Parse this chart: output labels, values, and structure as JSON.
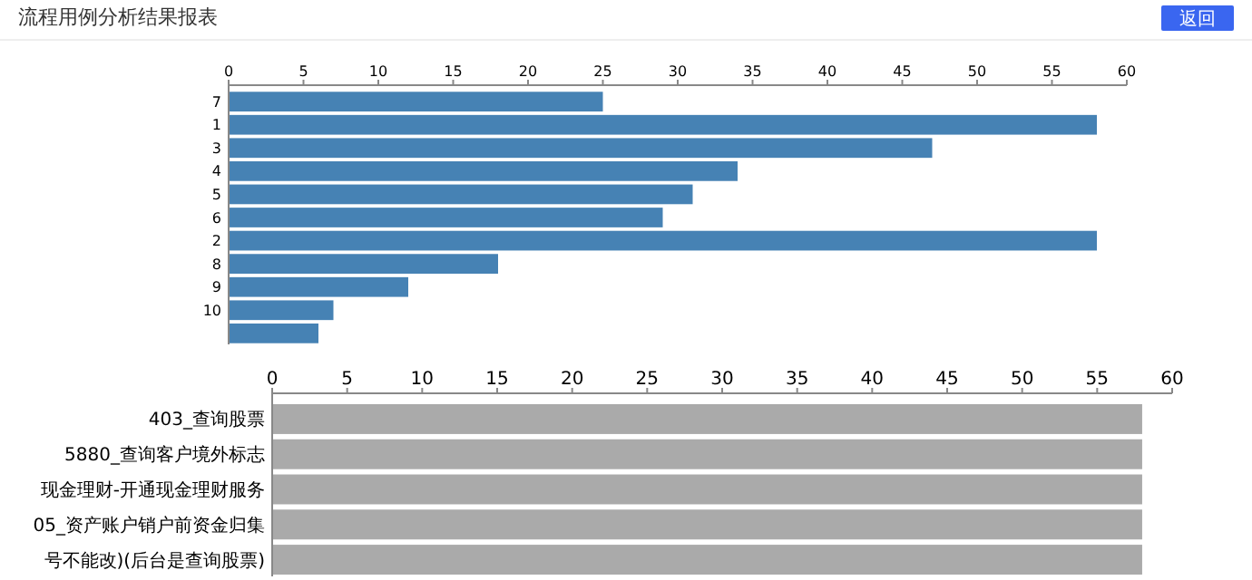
{
  "chart_data": [
    {
      "type": "bar",
      "orientation": "horizontal",
      "title": "流程用例分析结果报表",
      "annotations": [
        "返回"
      ],
      "categories": [
        "7",
        "1",
        "3",
        "4",
        "5",
        "6",
        "2",
        "8",
        "9",
        "10",
        null
      ],
      "values": [
        25,
        58,
        47,
        34,
        31,
        29,
        58,
        18,
        12,
        7,
        6
      ],
      "color": "#4682b4",
      "xlim": [
        0,
        60
      ],
      "xticks": [
        0,
        5,
        10,
        15,
        20,
        25,
        30,
        35,
        40,
        45,
        50,
        55,
        60
      ],
      "grid": false
    },
    {
      "type": "bar",
      "orientation": "horizontal",
      "categories": [
        "403_查询股票",
        "5880_查询客户境外标志",
        "现金理财-开通现金理财服务",
        "05_资产账户销户前资金归集",
        "号不能改)(后台是查询股票)"
      ],
      "values": [
        58,
        58,
        58,
        58,
        58
      ],
      "color": "#aaaaaa",
      "xlim": [
        0,
        60
      ],
      "xticks": [
        0,
        5,
        10,
        15,
        20,
        25,
        30,
        35,
        40,
        45,
        50,
        55,
        60
      ],
      "grid": false
    }
  ]
}
